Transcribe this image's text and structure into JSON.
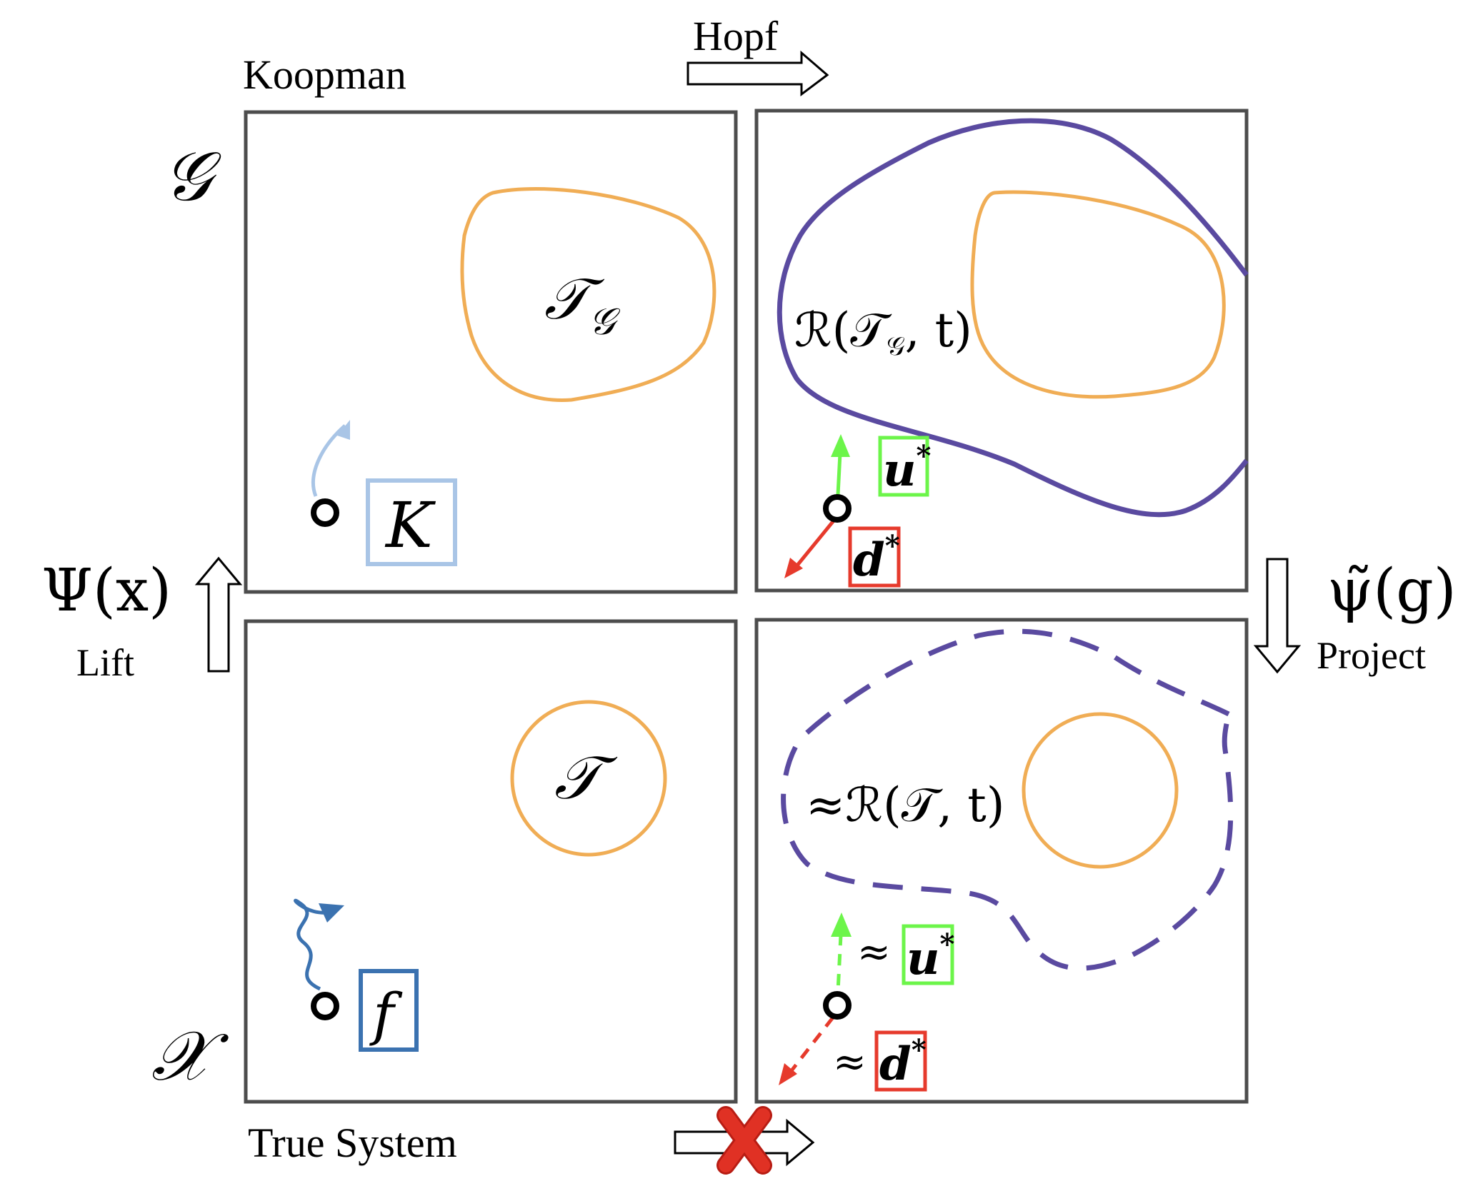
{
  "labels": {
    "koopman": "Koopman",
    "hopf": "Hopf",
    "true_system": "True System",
    "lift": "Lift",
    "project": "Project",
    "space_g": "𝒢",
    "space_x": "𝒳",
    "lift_map": "Ψ(x)",
    "project_map": "ψ̃(g)"
  },
  "panels": {
    "koopman_lifted": {
      "target_label": "𝒯",
      "target_sub": "𝒢",
      "operator_label": "K"
    },
    "hopf_lifted": {
      "reach_label": "ℛ(𝒯",
      "reach_sub": "𝒢",
      "reach_rest": ", t)",
      "control_label": "u",
      "control_sup": "*",
      "disturbance_label": "d",
      "disturbance_sup": "*"
    },
    "true_system": {
      "target_label": "𝒯",
      "dynamics_label": "f"
    },
    "projected": {
      "approx": "≈",
      "reach_label": "≈ℛ(𝒯, t)",
      "control_label": "u",
      "control_sup": "*",
      "disturbance_label": "d",
      "disturbance_sup": "*"
    }
  },
  "colors": {
    "panel_border": "#4d4d4d",
    "target": "#f0ad55",
    "reach_set": "#5a4aa0",
    "koopman_arrow": "#a9c5e6",
    "dynamics_arrow": "#3b72b0",
    "control": "#6cf54a",
    "disturbance": "#e63a2c",
    "blocked": "#e03124"
  }
}
